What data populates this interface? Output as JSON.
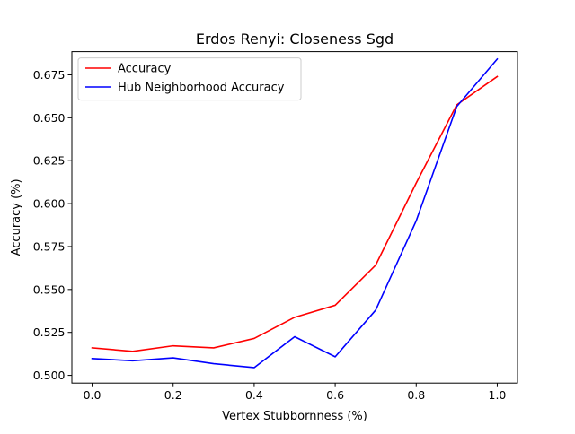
{
  "chart_data": {
    "type": "line",
    "title": "Erdos Renyi: Closeness Sgd",
    "xlabel": "Vertex Stubbornness (%)",
    "ylabel": "Accuracy (%)",
    "x": [
      0.0,
      0.1,
      0.2,
      0.3,
      0.4,
      0.5,
      0.6,
      0.7,
      0.8,
      0.9,
      1.0
    ],
    "xlim": [
      -0.05,
      1.05
    ],
    "ylim": [
      0.4955,
      0.6885
    ],
    "xticks": [
      0.0,
      0.2,
      0.4,
      0.6,
      0.8,
      1.0
    ],
    "xtick_labels": [
      "0.0",
      "0.2",
      "0.4",
      "0.6",
      "0.8",
      "1.0"
    ],
    "yticks": [
      0.5,
      0.525,
      0.55,
      0.575,
      0.6,
      0.625,
      0.65,
      0.675
    ],
    "ytick_labels": [
      "0.500",
      "0.525",
      "0.550",
      "0.575",
      "0.600",
      "0.625",
      "0.650",
      "0.675"
    ],
    "grid": false,
    "legend_position": "top-left",
    "series": [
      {
        "name": "Accuracy",
        "color": "#ff0000",
        "values": [
          0.516,
          0.514,
          0.5172,
          0.516,
          0.5215,
          0.5338,
          0.5408,
          0.5642,
          0.612,
          0.6575,
          0.674
        ]
      },
      {
        "name": "Hub Neighborhood Accuracy",
        "color": "#0000ff",
        "values": [
          0.5098,
          0.5085,
          0.5102,
          0.5068,
          0.5045,
          0.5225,
          0.5108,
          0.538,
          0.59,
          0.6565,
          0.6842
        ]
      }
    ]
  }
}
